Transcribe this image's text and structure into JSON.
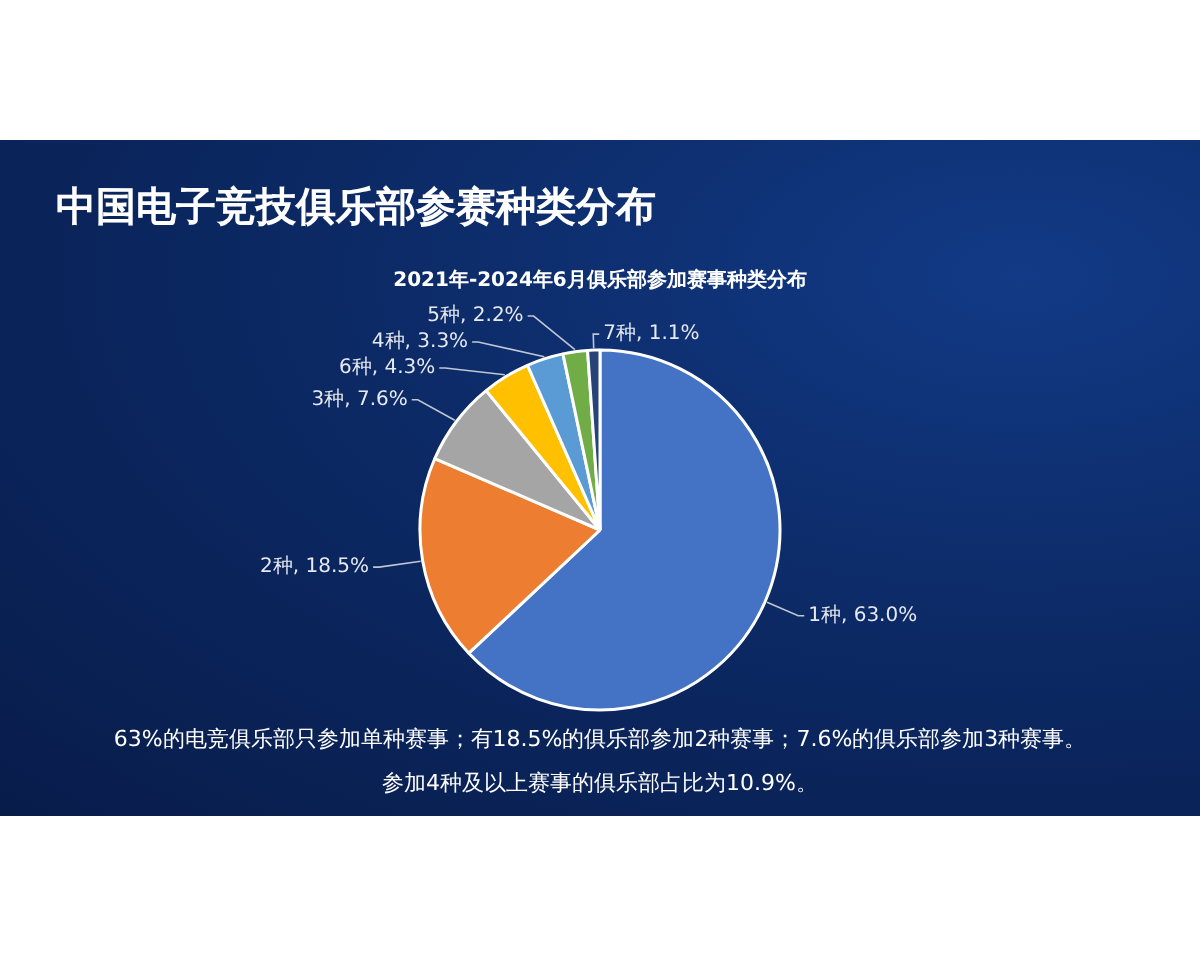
{
  "chart_data": {
    "type": "pie",
    "title": "中国电子竞技俱乐部参赛种类分布",
    "subtitle": "2021年-2024年6月俱乐部参加赛事种类分布",
    "categories": [
      "1种",
      "2种",
      "3种",
      "6种",
      "4种",
      "5种",
      "7种"
    ],
    "values": [
      63.0,
      18.5,
      7.6,
      4.3,
      3.3,
      2.2,
      1.1
    ],
    "colors": [
      "#4472c4",
      "#ed7d31",
      "#a5a5a5",
      "#ffc000",
      "#5b9bd5",
      "#70ad47",
      "#264478"
    ],
    "value_labels": [
      "63.0%",
      "18.5%",
      "7.6%",
      "4.3%",
      "3.3%",
      "2.2%",
      "1.1%"
    ],
    "annotations": [
      "63%的电竞俱乐部只参加单种赛事；有18.5%的俱乐部参加2种赛事；7.6%的俱乐部参加3种赛事。",
      "参加4种及以上赛事的俱乐部占比为10.9%。"
    ],
    "legend": false
  }
}
